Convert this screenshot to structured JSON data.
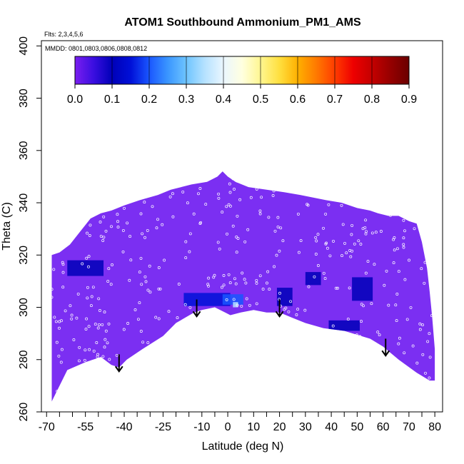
{
  "chart_data": {
    "type": "heatmap",
    "title": "ATOM1 Southbound Ammonium_PM1_AMS",
    "flights_label": "Flts: 2,3,4,5,6",
    "dates_label": "MMDD: 0801,0803,0806,0808,0812",
    "xlabel": "Latitude (deg N)",
    "ylabel": "Theta (C)",
    "xlim": [
      -72,
      83
    ],
    "ylim": [
      260,
      402
    ],
    "x_ticks": [
      -70,
      -55,
      -40,
      -25,
      -10,
      0,
      10,
      20,
      30,
      40,
      50,
      60,
      70,
      80
    ],
    "x_tick_labels": [
      "-70",
      "-55",
      "-40",
      "-25",
      "-10",
      "0",
      "10",
      "20",
      "30",
      "40",
      "50",
      "60",
      "70",
      "80"
    ],
    "y_ticks": [
      260,
      280,
      300,
      320,
      340,
      360,
      380,
      400
    ],
    "y_tick_labels": [
      "260",
      "280",
      "300",
      "320",
      "340",
      "360",
      "380",
      "400"
    ],
    "colorbar": {
      "range": [
        0.0,
        0.9
      ],
      "ticks": [
        0.0,
        0.1,
        0.2,
        0.3,
        0.4,
        0.5,
        0.6,
        0.7,
        0.8,
        0.9
      ],
      "tick_labels": [
        "0.0",
        "0.1",
        "0.2",
        "0.3",
        "0.4",
        "0.5",
        "0.6",
        "0.7",
        "0.8",
        "0.9"
      ],
      "colors": [
        "#7a1ef0",
        "#3a0ee0",
        "#0000b8",
        "#0010d8",
        "#1a56ff",
        "#3a96ff",
        "#6ec4ff",
        "#b6e2ff",
        "#eaf6ff",
        "#ffffe0",
        "#fff690",
        "#ffe040",
        "#ffb000",
        "#ff7a00",
        "#ff3c00",
        "#ee0000",
        "#c40000",
        "#960000",
        "#6a0000"
      ]
    },
    "field_color": "#7b2ff2",
    "upper_envelope": [
      [
        -68,
        320
      ],
      [
        -65,
        321
      ],
      [
        -61,
        324
      ],
      [
        -57,
        329
      ],
      [
        -53,
        334
      ],
      [
        -49,
        336
      ],
      [
        -45,
        337
      ],
      [
        -40,
        339
      ],
      [
        -34,
        341
      ],
      [
        -27,
        343
      ],
      [
        -22,
        345
      ],
      [
        -18,
        346
      ],
      [
        -14,
        347
      ],
      [
        -8,
        348
      ],
      [
        -4,
        350
      ],
      [
        -2,
        352
      ],
      [
        0,
        350
      ],
      [
        3,
        348
      ],
      [
        8,
        346
      ],
      [
        15,
        345
      ],
      [
        22,
        344
      ],
      [
        28,
        343
      ],
      [
        33,
        342
      ],
      [
        38,
        341
      ],
      [
        44,
        340
      ],
      [
        50,
        338
      ],
      [
        55,
        337
      ],
      [
        58,
        336
      ],
      [
        62,
        335
      ],
      [
        66,
        335
      ],
      [
        70,
        333
      ],
      [
        73,
        332
      ],
      [
        75,
        325
      ],
      [
        77,
        315
      ],
      [
        78,
        306
      ],
      [
        79,
        296
      ],
      [
        80,
        284
      ],
      [
        80,
        273
      ]
    ],
    "lower_envelope": [
      [
        -68,
        264
      ],
      [
        -62,
        276
      ],
      [
        -55,
        279
      ],
      [
        -49,
        281
      ],
      [
        -45,
        278
      ],
      [
        -42,
        277
      ],
      [
        -39,
        280
      ],
      [
        -33,
        284
      ],
      [
        -25,
        289
      ],
      [
        -20,
        294
      ],
      [
        -13,
        298
      ],
      [
        -10,
        299
      ],
      [
        -5,
        300
      ],
      [
        -1,
        298
      ],
      [
        1,
        297
      ],
      [
        5,
        298
      ],
      [
        10,
        299
      ],
      [
        15,
        298
      ],
      [
        20,
        298
      ],
      [
        25,
        296
      ],
      [
        30,
        294
      ],
      [
        37,
        292
      ],
      [
        45,
        291
      ],
      [
        55,
        288
      ],
      [
        60,
        285
      ],
      [
        66,
        280
      ],
      [
        73,
        275
      ],
      [
        78,
        272
      ],
      [
        80,
        272
      ]
    ],
    "patches": [
      {
        "lat": -55,
        "theta": 315,
        "w": 14,
        "h": 6,
        "value": 0.1
      },
      {
        "lat": -8,
        "theta": 303,
        "w": 18,
        "h": 5,
        "value": 0.15
      },
      {
        "lat": 2,
        "theta": 303,
        "w": 8,
        "h": 4,
        "value": 0.2
      },
      {
        "lat": 3,
        "theta": 301,
        "w": 2,
        "h": 2,
        "value": 0.35
      },
      {
        "lat": 22,
        "theta": 304,
        "w": 6,
        "h": 7,
        "value": 0.12
      },
      {
        "lat": 33,
        "theta": 311,
        "w": 6,
        "h": 5,
        "value": 0.12
      },
      {
        "lat": 52,
        "theta": 307,
        "w": 8,
        "h": 9,
        "value": 0.1
      },
      {
        "lat": 45,
        "theta": 293,
        "w": 12,
        "h": 4,
        "value": 0.1
      }
    ],
    "arrows": [
      {
        "lat": -42,
        "theta": 282
      },
      {
        "lat": -12,
        "theta": 303
      },
      {
        "lat": 20,
        "theta": 303
      },
      {
        "lat": 61,
        "theta": 288
      }
    ]
  }
}
